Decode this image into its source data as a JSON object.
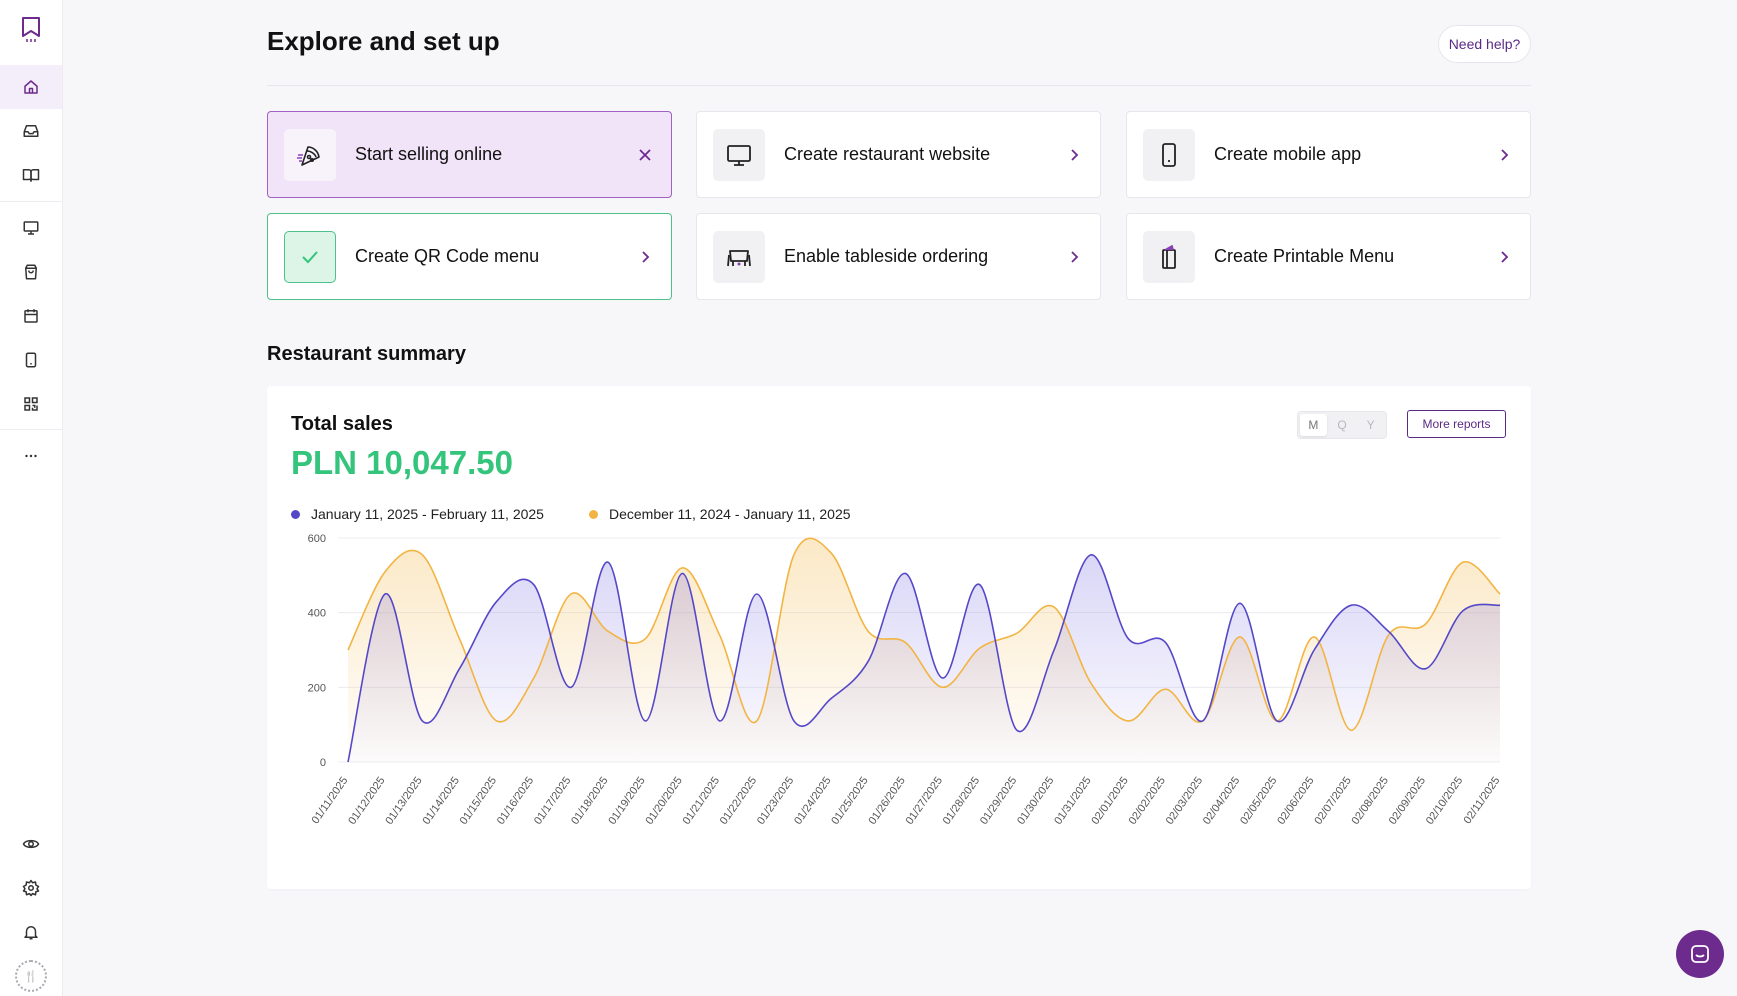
{
  "header": {
    "title": "Explore and set up",
    "help_label": "Need help?"
  },
  "cards": [
    {
      "label": "Start selling online",
      "icon": "pizza-icon",
      "action": "close"
    },
    {
      "label": "Create restaurant website",
      "icon": "monitor-icon",
      "action": "chevron"
    },
    {
      "label": "Create mobile app",
      "icon": "phone-icon",
      "action": "chevron"
    },
    {
      "label": "Create QR Code menu",
      "icon": "check-icon",
      "action": "chevron"
    },
    {
      "label": "Enable tableside ordering",
      "icon": "table-icon",
      "action": "chevron"
    },
    {
      "label": "Create Printable Menu",
      "icon": "printable-menu-icon",
      "action": "chevron"
    }
  ],
  "summary": {
    "section_title": "Restaurant summary",
    "total_label": "Total sales",
    "total_value": "PLN 10,047.50",
    "period_options": [
      "M",
      "Q",
      "Y"
    ],
    "selected_period": "M",
    "more_reports_label": "More reports"
  },
  "sidebar": {
    "icons": [
      "home-icon",
      "inbox-icon",
      "menu-book-icon",
      "monitor-icon",
      "bag-icon",
      "calendar-icon",
      "phone-icon",
      "qr-code-icon",
      "more-icon",
      "eye-icon",
      "gear-icon",
      "bell-icon"
    ],
    "avatar_text": "🍴"
  },
  "colors": {
    "accent": "#5b2a86",
    "current_series": "#5548c8",
    "previous_series": "#f2b442",
    "total": "#34c47c"
  },
  "chart_data": {
    "type": "area",
    "x": [
      "01/11/2025",
      "01/12/2025",
      "01/13/2025",
      "01/14/2025",
      "01/15/2025",
      "01/16/2025",
      "01/17/2025",
      "01/18/2025",
      "01/19/2025",
      "01/20/2025",
      "01/21/2025",
      "01/22/2025",
      "01/23/2025",
      "01/24/2025",
      "01/25/2025",
      "01/26/2025",
      "01/27/2025",
      "01/28/2025",
      "01/29/2025",
      "01/30/2025",
      "01/31/2025",
      "02/01/2025",
      "02/02/2025",
      "02/03/2025",
      "02/04/2025",
      "02/05/2025",
      "02/06/2025",
      "02/07/2025",
      "02/08/2025",
      "02/09/2025",
      "02/10/2025",
      "02/11/2025"
    ],
    "series": [
      {
        "name": "January 11, 2025 - February 11, 2025",
        "color": "#5548c8",
        "values": [
          0,
          450,
          110,
          250,
          430,
          475,
          200,
          535,
          110,
          505,
          110,
          450,
          110,
          170,
          270,
          505,
          225,
          475,
          85,
          300,
          555,
          330,
          320,
          110,
          425,
          110,
          300,
          420,
          350,
          250,
          405,
          420
        ]
      },
      {
        "name": "December 11, 2024 - January 11, 2025",
        "color": "#f2b442",
        "values": [
          300,
          510,
          555,
          330,
          110,
          225,
          450,
          350,
          330,
          520,
          340,
          110,
          555,
          560,
          350,
          320,
          200,
          305,
          345,
          415,
          210,
          110,
          195,
          110,
          335,
          110,
          335,
          85,
          340,
          370,
          535,
          450
        ]
      }
    ],
    "ylim": [
      0,
      600
    ],
    "yticks": [
      0,
      200,
      400,
      600
    ],
    "grid": true,
    "legend": "top-left"
  }
}
